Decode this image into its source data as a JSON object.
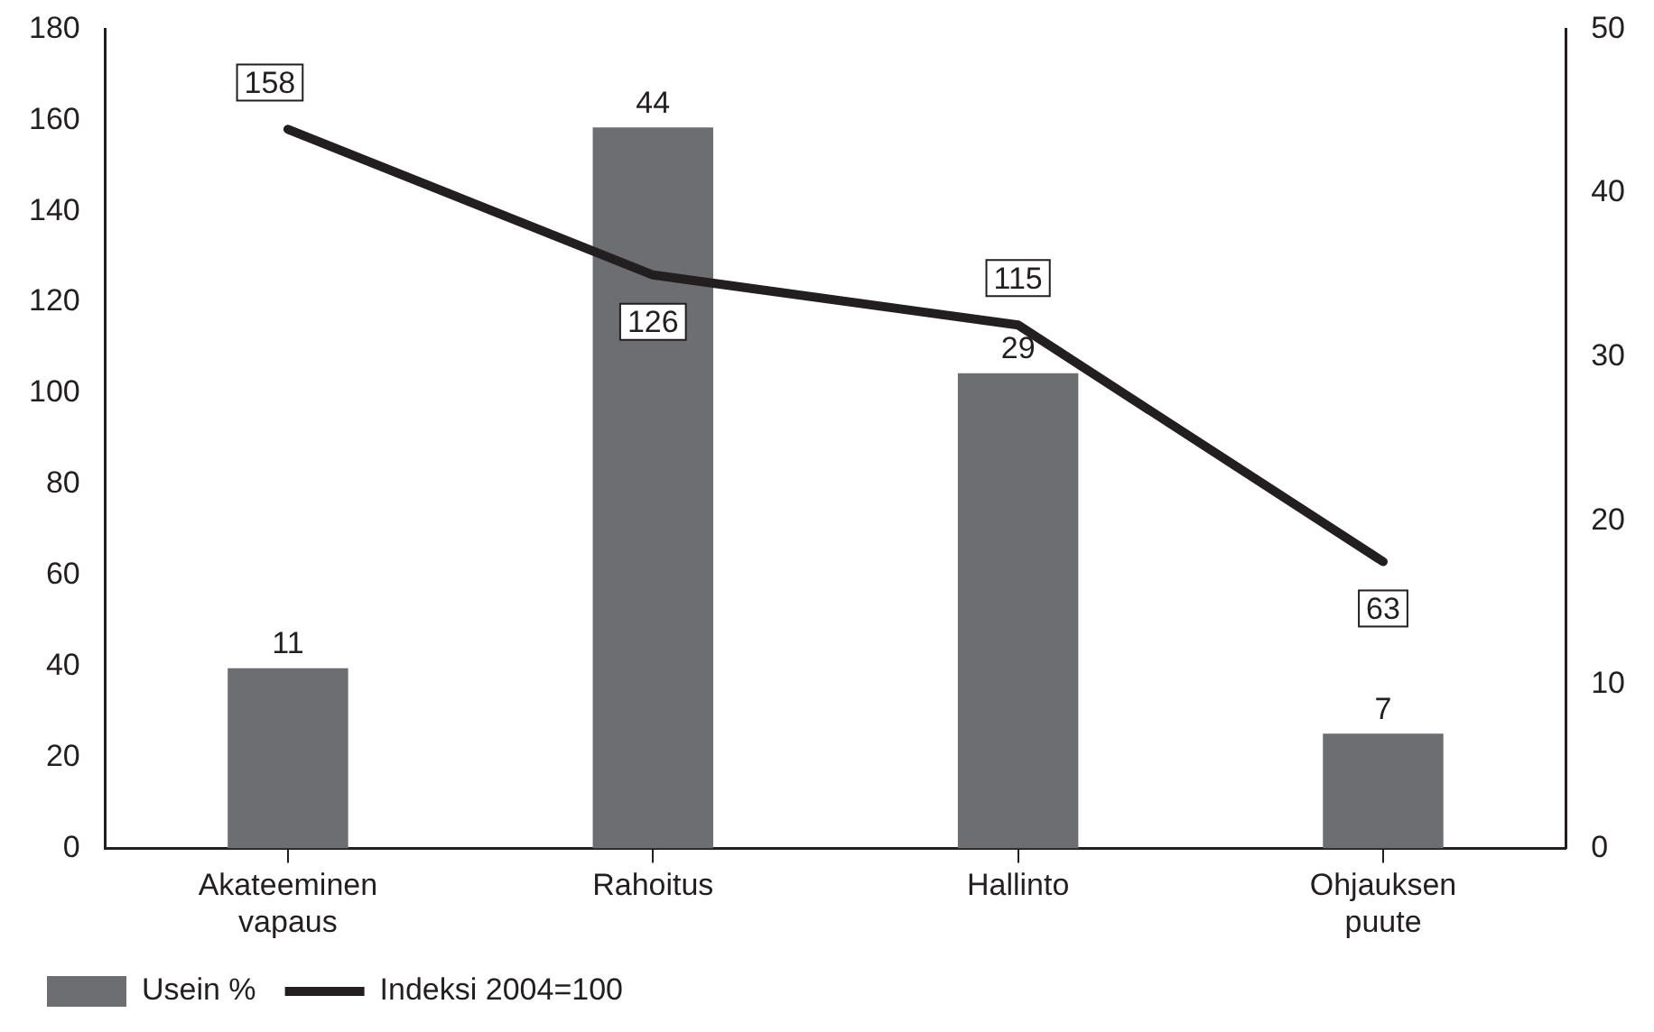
{
  "chart_data": {
    "type": "bar",
    "categories": [
      "Akateeminen vapaus",
      "Rahoitus",
      "Hallinto",
      "Ohjauksen puute"
    ],
    "series": [
      {
        "name": "Usein %",
        "axis": "y2",
        "color": "#6d6e71",
        "values": [
          11,
          44,
          29,
          7
        ]
      },
      {
        "name": "Indeksi 2004=100",
        "type": "line",
        "axis": "y",
        "color": "#231f20",
        "values": [
          158,
          126,
          115,
          63
        ]
      }
    ],
    "ylim": [
      0,
      180
    ],
    "yticks": [
      0,
      20,
      40,
      60,
      80,
      100,
      120,
      140,
      160,
      180
    ],
    "y2lim": [
      0,
      50
    ],
    "y2ticks": [
      0,
      10,
      20,
      30,
      40,
      50
    ],
    "data_labels": true,
    "grid": false,
    "legend": "bottom",
    "marker": "none"
  }
}
